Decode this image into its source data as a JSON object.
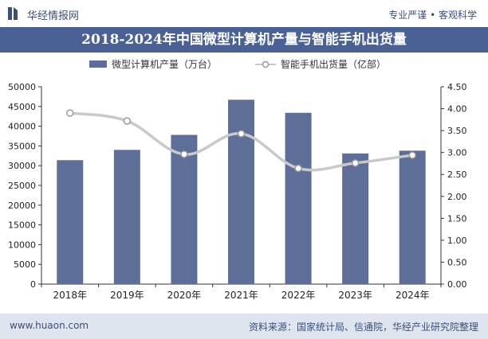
{
  "header": {
    "brand": "华经情报网",
    "tagline": "专业严谨 • 客观科学"
  },
  "chart_title": "2018-2024年中国微型计算机产量与智能手机出货量",
  "footer": {
    "url": "www.huaon.com",
    "source": "资料来源：国家统计局、信通院，华经产业研究院整理"
  },
  "colors": {
    "bar": "#5d6f98",
    "line": "#c9c9c9",
    "title_band": "#4a6196",
    "footer_band": "#dfe5ef",
    "brand_text": "#3a4f7a"
  },
  "chart_data": {
    "type": "bar",
    "categories": [
      "2018年",
      "2019年",
      "2020年",
      "2021年",
      "2022年",
      "2023年",
      "2024年"
    ],
    "series": [
      {
        "name": "微型计算机产量（万台）",
        "type": "bar",
        "axis": "left",
        "values": [
          31400,
          34000,
          37800,
          46700,
          43400,
          33100,
          33800
        ]
      },
      {
        "name": "智能手机出货量（亿部）",
        "type": "line",
        "axis": "right",
        "values": [
          3.9,
          3.72,
          2.96,
          3.43,
          2.64,
          2.76,
          2.94
        ]
      }
    ],
    "y_left": {
      "ylim": [
        0,
        50000
      ],
      "ticks": [
        0,
        5000,
        10000,
        15000,
        20000,
        25000,
        30000,
        35000,
        40000,
        45000,
        50000
      ]
    },
    "y_right": {
      "ylim": [
        0,
        4.5
      ],
      "ticks": [
        "0.00",
        "0.50",
        "1.00",
        "1.50",
        "2.00",
        "2.50",
        "3.00",
        "3.50",
        "4.00",
        "4.50"
      ]
    },
    "legend": "top",
    "grid": false
  }
}
